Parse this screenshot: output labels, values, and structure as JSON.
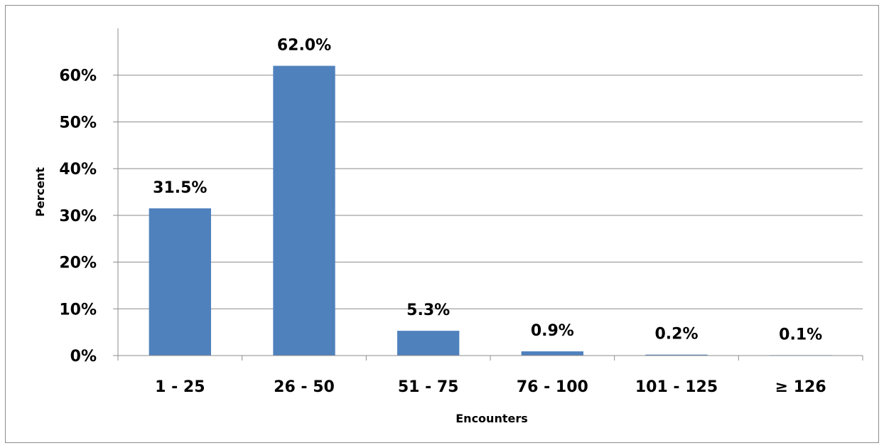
{
  "chart_data": {
    "type": "bar",
    "categories": [
      "1 - 25",
      "26 - 50",
      "51 - 75",
      "76 - 100",
      "101 - 125",
      "≥ 126"
    ],
    "values": [
      31.5,
      62.0,
      5.3,
      0.9,
      0.2,
      0.1
    ],
    "data_labels": [
      "31.5%",
      "62.0%",
      "5.3%",
      "0.9%",
      "0.2%",
      "0.1%"
    ],
    "xlabel": "Encounters",
    "ylabel": "Percent",
    "ylim": [
      0,
      70
    ],
    "yticks": [
      0,
      10,
      20,
      30,
      40,
      50,
      60
    ],
    "ytick_labels": [
      "0%",
      "10%",
      "20%",
      "30%",
      "40%",
      "50%",
      "60%"
    ],
    "grid": true,
    "legend": "none",
    "colors": {
      "bar": "#4f81bd",
      "grid": "#8c8c8c",
      "axis": "#8c8c8c",
      "text": "#000000"
    }
  }
}
